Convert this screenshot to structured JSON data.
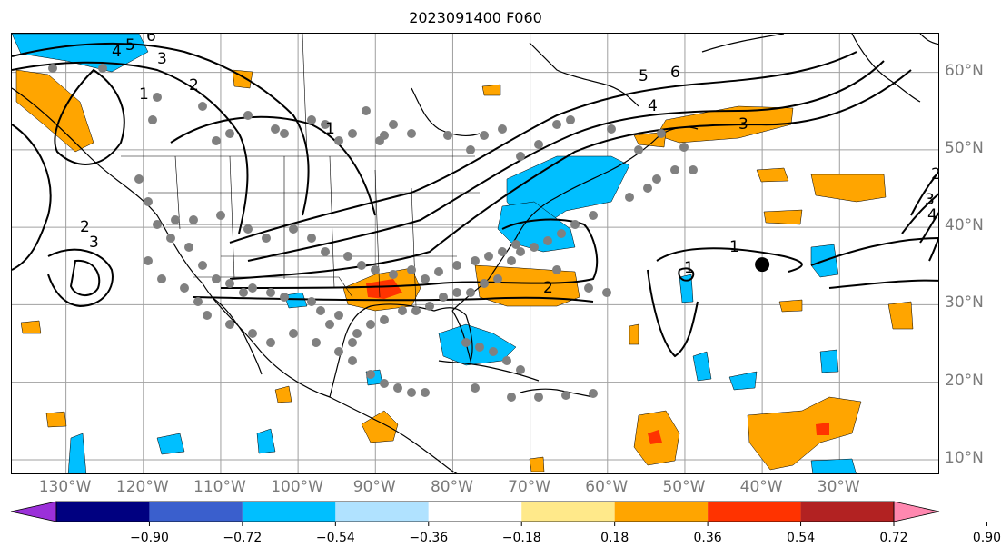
{
  "title": "2023091400 F060",
  "map": {
    "lon_labels": [
      "130°W",
      "120°W",
      "110°W",
      "100°W",
      "90°W",
      "80°W",
      "70°W",
      "60°W",
      "50°W",
      "40°W",
      "30°W"
    ],
    "lat_labels": [
      "60°N",
      "50°N",
      "40°N",
      "30°N",
      "20°N",
      "10°N"
    ],
    "lon_range": [
      -137,
      -17
    ],
    "lat_range": [
      8,
      65
    ],
    "grid": true,
    "contour_labels": [
      "6",
      "5",
      "4",
      "3",
      "2",
      "1",
      "1",
      "1",
      "2",
      "3",
      "4",
      "5",
      "6",
      "2",
      "3",
      "1",
      "2",
      "3",
      "4"
    ],
    "marker": {
      "lon": -40,
      "lat": 35.2
    }
  },
  "colorbar": {
    "tick_labels": [
      "−0.90",
      "−0.72",
      "−0.54",
      "−0.36",
      "−0.18",
      "0.18",
      "0.36",
      "0.54",
      "0.72",
      "0.90"
    ],
    "colors": [
      "#9b30d9",
      "#000080",
      "#3a5fcd",
      "#00bfff",
      "#b0e2ff",
      "#ffffff",
      "#ffe98a",
      "#ffa500",
      "#ff3300",
      "#b22222",
      "#ff88b0"
    ]
  },
  "colors": {
    "positive": "#ffa500",
    "positive_strong": "#ff3300",
    "negative": "#00bfff",
    "grid": "#a0a0a0",
    "stations": "#808080",
    "contour": "#000000"
  }
}
